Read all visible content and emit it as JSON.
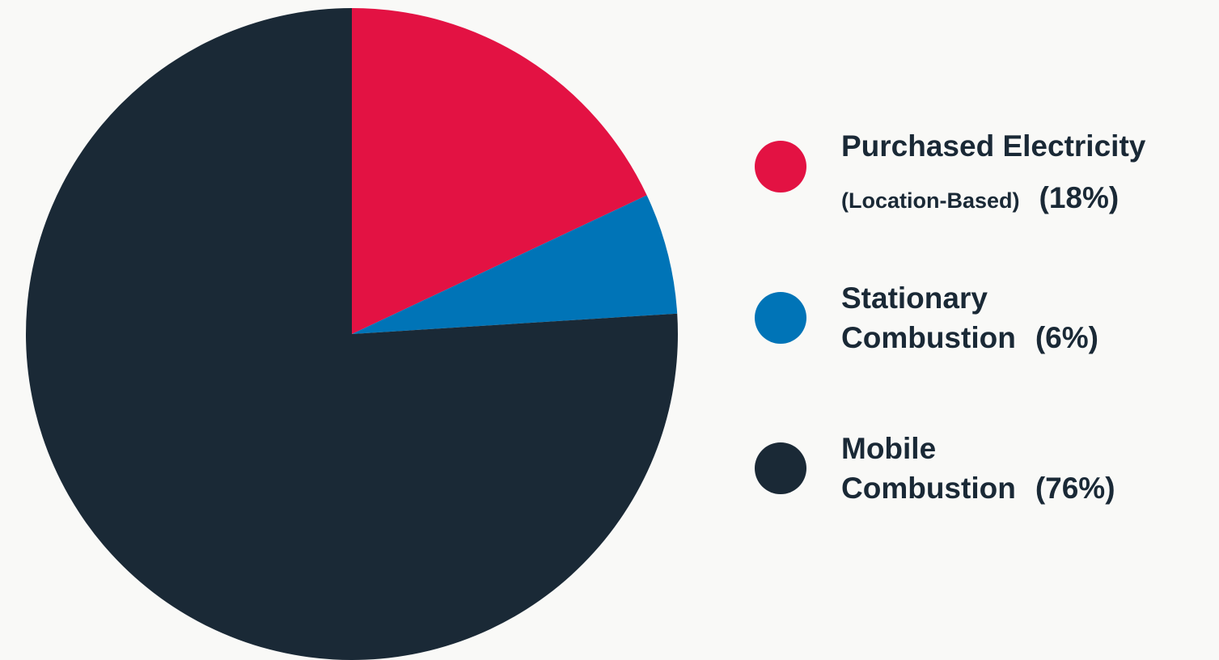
{
  "chart_data": {
    "type": "pie",
    "categories": [
      [
        "Purchased Electricity",
        "(Location-Based)"
      ],
      [
        "Stationary",
        "Combustion"
      ],
      [
        "Mobile",
        "Combustion"
      ]
    ],
    "values": [
      18,
      6,
      76
    ],
    "value_labels": [
      "(18%)",
      "(6%)",
      "(76%)"
    ],
    "colors": [
      "#e31243",
      "#0074b7",
      "#1a2936"
    ]
  }
}
